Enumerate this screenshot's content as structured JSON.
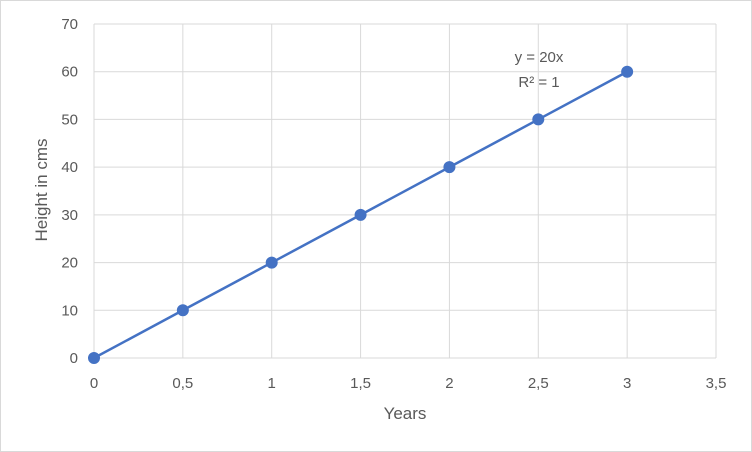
{
  "chart_data": {
    "type": "scatter",
    "title": "",
    "xlabel": "Years",
    "ylabel": "Height in cms",
    "xlim": [
      0,
      3.5
    ],
    "ylim": [
      0,
      70
    ],
    "xticks": [
      0,
      0.5,
      1,
      1.5,
      2,
      2.5,
      3,
      3.5
    ],
    "xtick_labels": [
      "0",
      "0,5",
      "1",
      "1,5",
      "2",
      "2,5",
      "3",
      "3,5"
    ],
    "yticks": [
      0,
      10,
      20,
      30,
      40,
      50,
      60,
      70
    ],
    "ytick_labels": [
      "0",
      "10",
      "20",
      "30",
      "40",
      "50",
      "60",
      "70"
    ],
    "grid": true,
    "legend": "none",
    "series": [
      {
        "x": [
          0,
          0.5,
          1,
          1.5,
          2,
          2.5,
          3
        ],
        "y": [
          0,
          10,
          20,
          30,
          40,
          50,
          60
        ],
        "color": "#4472c4",
        "line": true,
        "markers": true
      }
    ],
    "trendline": {
      "equation": "y = 20x",
      "r_squared": "R² = 1"
    }
  }
}
